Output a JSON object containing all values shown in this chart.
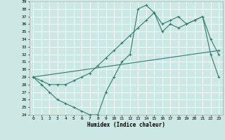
{
  "xlabel": "Humidex (Indice chaleur)",
  "background_color": "#cce8e4",
  "line_color": "#2d7d6e",
  "grid_color": "#ffffff",
  "xlim": [
    -0.5,
    23.5
  ],
  "ylim": [
    24,
    39
  ],
  "xticks": [
    0,
    1,
    2,
    3,
    4,
    5,
    6,
    7,
    8,
    9,
    10,
    11,
    12,
    13,
    14,
    15,
    16,
    17,
    18,
    19,
    20,
    21,
    22,
    23
  ],
  "yticks": [
    24,
    25,
    26,
    27,
    28,
    29,
    30,
    31,
    32,
    33,
    34,
    35,
    36,
    37,
    38,
    39
  ],
  "line1_x": [
    0,
    1,
    2,
    3,
    4,
    5,
    6,
    7,
    8,
    9,
    10,
    11,
    12,
    13,
    14,
    15,
    16,
    17,
    18,
    19,
    20,
    21,
    22,
    23
  ],
  "line1_y": [
    29,
    28,
    27,
    26,
    25.5,
    25,
    24.5,
    24,
    24,
    27,
    29,
    31,
    32,
    38,
    38.5,
    37.5,
    36,
    36.5,
    37,
    36,
    36.5,
    37,
    32,
    29
  ],
  "line2_x": [
    0,
    1,
    2,
    3,
    4,
    5,
    6,
    7,
    8,
    9,
    10,
    11,
    12,
    13,
    14,
    15,
    16,
    17,
    18,
    19,
    20,
    21,
    22,
    23
  ],
  "line2_y": [
    29,
    28.5,
    28,
    28,
    28,
    28.5,
    29,
    29.5,
    30.5,
    31.5,
    32.5,
    33.5,
    34.5,
    35.5,
    36.5,
    37.5,
    35,
    36,
    35.5,
    36,
    36.5,
    37,
    34,
    32
  ],
  "line3_x": [
    0,
    23
  ],
  "line3_y": [
    29,
    32.5
  ],
  "tick_fontsize": 4.5,
  "xlabel_fontsize": 5.5
}
